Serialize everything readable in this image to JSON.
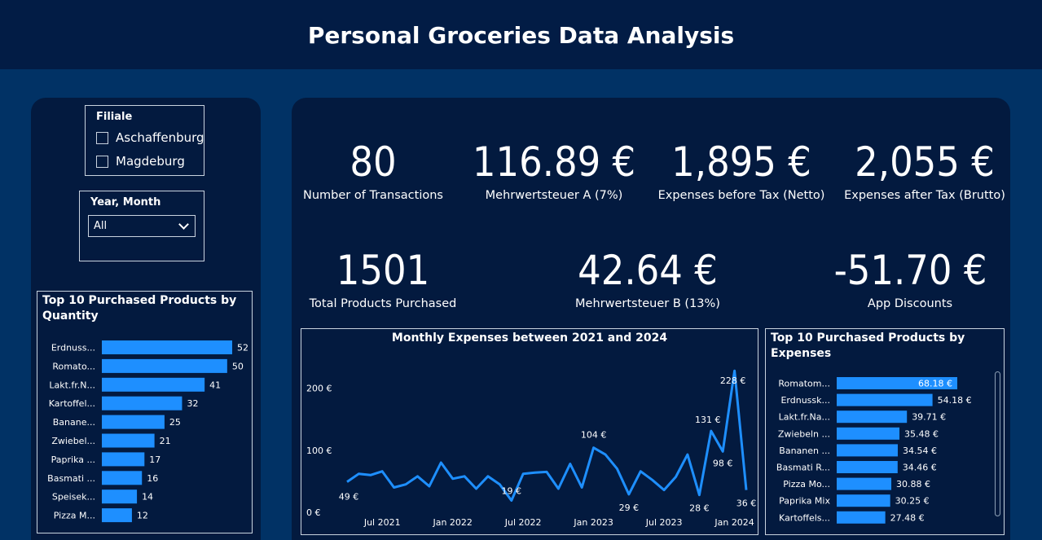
{
  "header": {
    "title": "Personal Groceries Data Analysis"
  },
  "filters": {
    "filiale": {
      "title": "Filiale",
      "options": [
        "Aschaffenburg",
        "Magdeburg"
      ]
    },
    "year_month": {
      "title": "Year, Month",
      "selected": "All"
    }
  },
  "kpis": {
    "transactions": {
      "value": "80",
      "label": "Number of Transactions"
    },
    "mwst_a": {
      "value": "116.89 €",
      "label": "Mehrwertsteuer A (7%)"
    },
    "netto": {
      "value": "1,895 €",
      "label": "Expenses before Tax (Netto)"
    },
    "brutto": {
      "value": "2,055 €",
      "label": "Expenses after Tax (Brutto)"
    },
    "products": {
      "value": "1501",
      "label": "Total Products Purchased"
    },
    "mwst_b": {
      "value": "42.64 €",
      "label": "Mehrwertsteuer B (13%)"
    },
    "discounts": {
      "value": "-51.70 €",
      "label": "App Discounts"
    }
  },
  "colors": {
    "accent": "#1e8fff",
    "header_bg": "#021c45",
    "page_bg": "#013265",
    "panel_bg": "#031a3f"
  },
  "chart_data": [
    {
      "type": "bar",
      "orientation": "horizontal",
      "title": "Top 10 Purchased Products by Quantity",
      "categories": [
        "Erdnuss...",
        "Romato...",
        "Lakt.fr.N...",
        "Kartoffel...",
        "Banane...",
        "Zwiebel...",
        "Paprika ...",
        "Basmati ...",
        "Speisek...",
        "Pizza M..."
      ],
      "values": [
        52,
        50,
        41,
        32,
        25,
        21,
        17,
        16,
        14,
        12
      ],
      "data_labels": [
        "52",
        "50",
        "41",
        "32",
        "25",
        "21",
        "17",
        "16",
        "14",
        "12"
      ],
      "xlim": [
        0,
        52
      ]
    },
    {
      "type": "line",
      "title": "Monthly Expenses between 2021 and 2024",
      "x_tick_labels": [
        "Jul 2021",
        "Jan 2022",
        "Jul 2022",
        "Jan 2023",
        "Jul 2023",
        "Jan 2024"
      ],
      "y_tick_labels": [
        "0 €",
        "100 €",
        "200 €"
      ],
      "ylim": [
        0,
        240
      ],
      "x": [
        "2021-04",
        "2021-05",
        "2021-06",
        "2021-07",
        "2021-08",
        "2021-09",
        "2021-10",
        "2021-11",
        "2021-12",
        "2022-01",
        "2022-02",
        "2022-03",
        "2022-04",
        "2022-05",
        "2022-06",
        "2022-07",
        "2022-08",
        "2022-09",
        "2022-10",
        "2022-11",
        "2022-12",
        "2023-01",
        "2023-02",
        "2023-03",
        "2023-04",
        "2023-05",
        "2023-06",
        "2023-07",
        "2023-08",
        "2023-09",
        "2023-10",
        "2023-11",
        "2023-12",
        "2024-01",
        "2024-02"
      ],
      "values": [
        49,
        62,
        60,
        66,
        40,
        45,
        58,
        42,
        80,
        54,
        58,
        38,
        58,
        45,
        19,
        62,
        64,
        65,
        38,
        78,
        40,
        104,
        93,
        70,
        29,
        66,
        52,
        36,
        57,
        93,
        28,
        131,
        98,
        228,
        36
      ],
      "point_labels": [
        {
          "index": 0,
          "label": "49 €"
        },
        {
          "index": 14,
          "label": "19 €"
        },
        {
          "index": 21,
          "label": "104 €"
        },
        {
          "index": 24,
          "label": "29 €"
        },
        {
          "index": 30,
          "label": "28 €"
        },
        {
          "index": 31,
          "label": "131 €"
        },
        {
          "index": 32,
          "label": "98 €"
        },
        {
          "index": 33,
          "label": "228 €"
        },
        {
          "index": 34,
          "label": "36 €"
        }
      ]
    },
    {
      "type": "bar",
      "orientation": "horizontal",
      "title": "Top 10 Purchased Products by Expenses",
      "categories": [
        "Romatom...",
        "Erdnussk...",
        "Lakt.fr.Na...",
        "Zwiebeln ...",
        "Bananen ...",
        "Basmati R...",
        "Pizza Mo...",
        "Paprika Mix",
        "Kartoffels..."
      ],
      "values": [
        68.18,
        54.18,
        39.71,
        35.48,
        34.54,
        34.46,
        30.88,
        30.25,
        27.48
      ],
      "data_labels": [
        "68.18 €",
        "54.18 €",
        "39.71 €",
        "35.48 €",
        "34.54 €",
        "34.46 €",
        "30.88 €",
        "30.25 €",
        "27.48 €"
      ],
      "xlim": [
        0,
        68.18
      ]
    }
  ]
}
